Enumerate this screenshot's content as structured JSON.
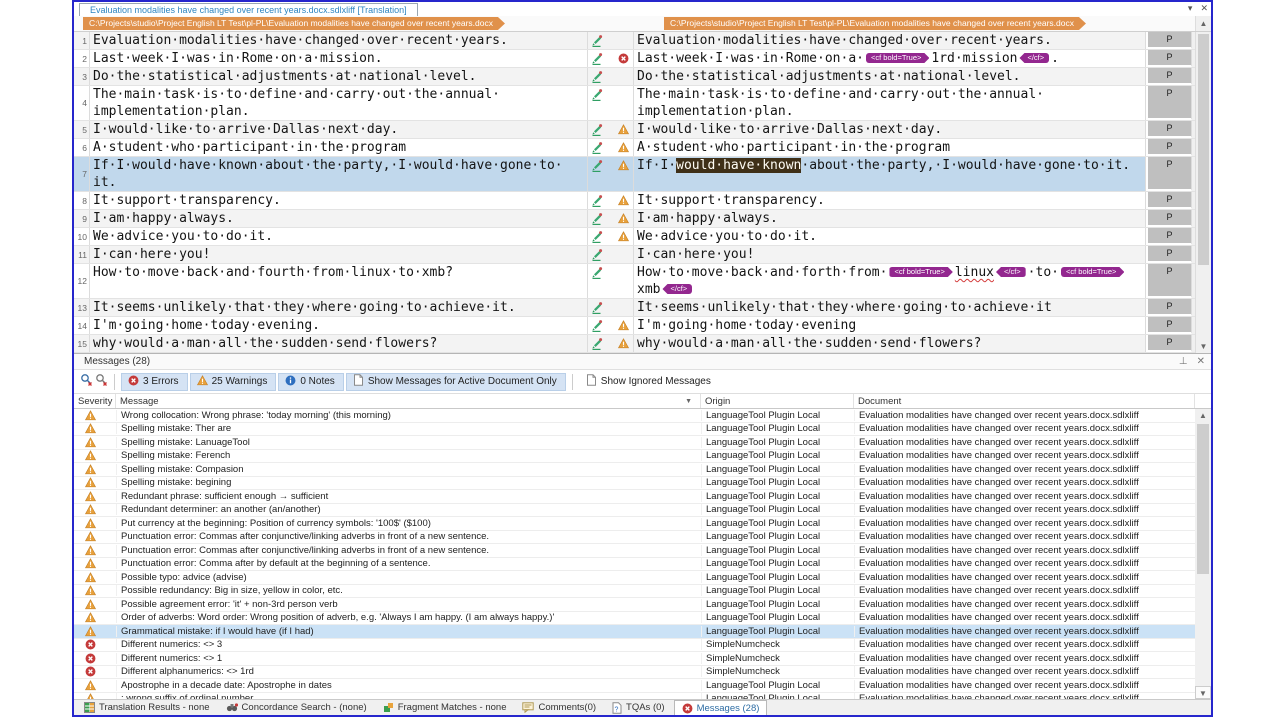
{
  "colors": {
    "window_border": "#2626cc",
    "breadcrumb_orange": "#e0914b",
    "tag_purple": "#93278f",
    "highlight_brown": "#3f3018",
    "selection_blue": "#c1d8ec",
    "warning_orange": "#e8a13c",
    "error_red": "#c43a3a"
  },
  "window": {
    "tab_title": "Evaluation modalities have changed over recent years.docx.sdlxliff [Translation]",
    "tab_dropdown_icon": "chevron-down-icon",
    "tab_close_icon": "close-icon"
  },
  "editor": {
    "source_path": "C:\\Projects\\studio\\Project English LT Test\\pl-PL\\Evaluation modalities have changed over recent years.docx",
    "target_path": "C:\\Projects\\studio\\Project English LT Test\\pl-PL\\Evaluation modalities have changed over recent years.docx",
    "structure_label": "P",
    "status_icon": "pencil-draft-icon",
    "segments": [
      {
        "num": "1",
        "lines": 1,
        "selected": false,
        "qa": null,
        "source": [
          {
            "t": "Evaluation modalities have changed over recent years."
          }
        ],
        "target": [
          {
            "t": "Evaluation modalities have changed over recent years."
          }
        ]
      },
      {
        "num": "2",
        "lines": 1,
        "selected": false,
        "qa": "error",
        "source": [
          {
            "t": "Last week I was in Rome on a mission."
          }
        ],
        "target": [
          {
            "t": "Last week I was in Rome on a "
          },
          {
            "t": "<cf bold=True>",
            "kind": "tag-open"
          },
          {
            "t": "1rd mission"
          },
          {
            "t": "</cf>",
            "kind": "tag-close"
          },
          {
            "t": "."
          }
        ]
      },
      {
        "num": "3",
        "lines": 1,
        "selected": false,
        "qa": null,
        "source": [
          {
            "t": "Do the statistical adjustments at national level."
          }
        ],
        "target": [
          {
            "t": "Do the statistical adjustments at national level."
          }
        ]
      },
      {
        "num": "4",
        "lines": 2,
        "selected": false,
        "qa": null,
        "source": [
          {
            "t": "The main task is to define and carry out the annual implementation plan."
          }
        ],
        "target": [
          {
            "t": "The main task is to define and carry out the annual implementation plan."
          }
        ]
      },
      {
        "num": "5",
        "lines": 1,
        "selected": false,
        "qa": "warning",
        "source": [
          {
            "t": "I would like to arrive Dallas next day."
          }
        ],
        "target": [
          {
            "t": "I would like to arrive Dallas next day."
          }
        ]
      },
      {
        "num": "6",
        "lines": 1,
        "selected": false,
        "qa": "warning",
        "source": [
          {
            "t": "A student who participant in the program"
          }
        ],
        "target": [
          {
            "t": "A student who participant in the program"
          }
        ]
      },
      {
        "num": "7",
        "lines": 2,
        "selected": true,
        "qa": "warning",
        "source": [
          {
            "t": "If I would have known about the party, I would have gone to it."
          }
        ],
        "target": [
          {
            "t": "If I "
          },
          {
            "t": "would have known",
            "kind": "highlight"
          },
          {
            "t": " about the party, I would have gone to it."
          }
        ]
      },
      {
        "num": "8",
        "lines": 1,
        "selected": false,
        "qa": "warning",
        "source": [
          {
            "t": "It support transparency."
          }
        ],
        "target": [
          {
            "t": "It support transparency."
          }
        ]
      },
      {
        "num": "9",
        "lines": 1,
        "selected": false,
        "qa": "warning",
        "source": [
          {
            "t": "I am happy always."
          }
        ],
        "target": [
          {
            "t": "I am happy always."
          }
        ]
      },
      {
        "num": "10",
        "lines": 1,
        "selected": false,
        "qa": "warning",
        "source": [
          {
            "t": "We advice you to do it."
          }
        ],
        "target": [
          {
            "t": "We advice you to do it."
          }
        ]
      },
      {
        "num": "11",
        "lines": 1,
        "selected": false,
        "qa": null,
        "source": [
          {
            "t": "I can here you!"
          }
        ],
        "target": [
          {
            "t": "I can here you!"
          }
        ]
      },
      {
        "num": "12",
        "lines": 2,
        "selected": false,
        "qa": null,
        "source": [
          {
            "t": "How to move back and fourth from linux to xmb?"
          }
        ],
        "target": [
          {
            "t": "How to move back and forth from "
          },
          {
            "t": "<cf bold=True>",
            "kind": "tag-open"
          },
          {
            "t": "linux",
            "kind": "misspelled"
          },
          {
            "t": "</cf>",
            "kind": "tag-close"
          },
          {
            "t": " to "
          },
          {
            "t": "<cf bold=True>",
            "kind": "tag-open"
          },
          {
            "t": "xmb"
          },
          {
            "t": "</cf>",
            "kind": "tag-close"
          }
        ]
      },
      {
        "num": "13",
        "lines": 1,
        "selected": false,
        "qa": null,
        "source": [
          {
            "t": "It seems unlikely that they where going to achieve it."
          }
        ],
        "target": [
          {
            "t": "It seems unlikely that they where going to achieve it"
          }
        ]
      },
      {
        "num": "14",
        "lines": 1,
        "selected": false,
        "qa": "warning",
        "source": [
          {
            "t": "I'm going home today evening."
          }
        ],
        "target": [
          {
            "t": "I'm going home today evening"
          }
        ]
      },
      {
        "num": "15",
        "lines": 1,
        "selected": false,
        "qa": "warning",
        "source": [
          {
            "t": "why would a man all the sudden send flowers?"
          }
        ],
        "target": [
          {
            "t": "why would a man all the sudden send flowers?"
          }
        ]
      }
    ]
  },
  "messages_panel": {
    "title": "Messages (28)",
    "pin_icon": "pin-icon",
    "close_icon": "close-icon",
    "toolbar": {
      "filter_icons": [
        "filter-search-icon",
        "clear-filter-icon"
      ],
      "errors_label": "3 Errors",
      "warnings_label": "25 Warnings",
      "notes_label": "0 Notes",
      "active_only_label": "Show Messages for Active Document Only",
      "ignored_label": "Show Ignored Messages"
    },
    "columns": [
      "Severity",
      "Message",
      "Origin",
      "Document"
    ],
    "rows": [
      {
        "severity": "warning",
        "selected": false,
        "message": "Wrong collocation: Wrong phrase: 'today morning' (this morning)",
        "origin": "LanguageTool Plugin Local",
        "document": "Evaluation modalities have changed over recent years.docx.sdlxliff"
      },
      {
        "severity": "warning",
        "selected": false,
        "message": "Spelling mistake: Ther are",
        "origin": "LanguageTool Plugin Local",
        "document": "Evaluation modalities have changed over recent years.docx.sdlxliff"
      },
      {
        "severity": "warning",
        "selected": false,
        "message": "Spelling mistake: LanuageTool",
        "origin": "LanguageTool Plugin Local",
        "document": "Evaluation modalities have changed over recent years.docx.sdlxliff"
      },
      {
        "severity": "warning",
        "selected": false,
        "message": "Spelling mistake: Ferench",
        "origin": "LanguageTool Plugin Local",
        "document": "Evaluation modalities have changed over recent years.docx.sdlxliff"
      },
      {
        "severity": "warning",
        "selected": false,
        "message": "Spelling mistake: Compasion",
        "origin": "LanguageTool Plugin Local",
        "document": "Evaluation modalities have changed over recent years.docx.sdlxliff"
      },
      {
        "severity": "warning",
        "selected": false,
        "message": "Spelling mistake: begining",
        "origin": "LanguageTool Plugin Local",
        "document": "Evaluation modalities have changed over recent years.docx.sdlxliff"
      },
      {
        "severity": "warning",
        "selected": false,
        "message": "Redundant phrase: sufficient enough → sufficient",
        "origin": "LanguageTool Plugin Local",
        "document": "Evaluation modalities have changed over recent years.docx.sdlxliff"
      },
      {
        "severity": "warning",
        "selected": false,
        "message": "Redundant determiner: an another (an/another)",
        "origin": "LanguageTool Plugin Local",
        "document": "Evaluation modalities have changed over recent years.docx.sdlxliff"
      },
      {
        "severity": "warning",
        "selected": false,
        "message": "Put currency at the beginning: Position of currency symbols: '100$' ($100)",
        "origin": "LanguageTool Plugin Local",
        "document": "Evaluation modalities have changed over recent years.docx.sdlxliff"
      },
      {
        "severity": "warning",
        "selected": false,
        "message": "Punctuation error: Commas after conjunctive/linking adverbs in front of a new sentence.",
        "origin": "LanguageTool Plugin Local",
        "document": "Evaluation modalities have changed over recent years.docx.sdlxliff"
      },
      {
        "severity": "warning",
        "selected": false,
        "message": "Punctuation error: Commas after conjunctive/linking adverbs in front of a new sentence.",
        "origin": "LanguageTool Plugin Local",
        "document": "Evaluation modalities have changed over recent years.docx.sdlxliff"
      },
      {
        "severity": "warning",
        "selected": false,
        "message": "Punctuation error: Comma after by default at the beginning of a sentence.",
        "origin": "LanguageTool Plugin Local",
        "document": "Evaluation modalities have changed over recent years.docx.sdlxliff"
      },
      {
        "severity": "warning",
        "selected": false,
        "message": "Possible typo: advice (advise)",
        "origin": "LanguageTool Plugin Local",
        "document": "Evaluation modalities have changed over recent years.docx.sdlxliff"
      },
      {
        "severity": "warning",
        "selected": false,
        "message": "Possible redundancy: Big in size, yellow in color, etc.",
        "origin": "LanguageTool Plugin Local",
        "document": "Evaluation modalities have changed over recent years.docx.sdlxliff"
      },
      {
        "severity": "warning",
        "selected": false,
        "message": "Possible agreement error: 'it' + non-3rd person verb",
        "origin": "LanguageTool Plugin Local",
        "document": "Evaluation modalities have changed over recent years.docx.sdlxliff"
      },
      {
        "severity": "warning",
        "selected": false,
        "message": "Order of adverbs: Word order: Wrong position of adverb, e.g. 'Always I am happy. (I am always happy.)'",
        "origin": "LanguageTool Plugin Local",
        "document": "Evaluation modalities have changed over recent years.docx.sdlxliff"
      },
      {
        "severity": "warning",
        "selected": true,
        "message": "Grammatical mistake: if I would have (if I had)",
        "origin": "LanguageTool Plugin Local",
        "document": "Evaluation modalities have changed over recent years.docx.sdlxliff"
      },
      {
        "severity": "error",
        "selected": false,
        "message": "Different numerics:  <> 3",
        "origin": "SimpleNumcheck",
        "document": "Evaluation modalities have changed over recent years.docx.sdlxliff"
      },
      {
        "severity": "error",
        "selected": false,
        "message": "Different numerics:  <> 1",
        "origin": "SimpleNumcheck",
        "document": "Evaluation modalities have changed over recent years.docx.sdlxliff"
      },
      {
        "severity": "error",
        "selected": false,
        "message": "Different alphanumerics:  <> 1rd",
        "origin": "SimpleNumcheck",
        "document": "Evaluation modalities have changed over recent years.docx.sdlxliff"
      },
      {
        "severity": "warning",
        "selected": false,
        "message": "Apostrophe in a decade date: Apostrophe in dates",
        "origin": "LanguageTool Plugin Local",
        "document": "Evaluation modalities have changed over recent years.docx.sdlxliff"
      },
      {
        "severity": "warning",
        "selected": false,
        "message": ": wrong suffix of ordinal number",
        "origin": "LanguageTool Plugin Local",
        "document": "Evaluation modalities have changed over recent years.docx.sdlxliff"
      }
    ]
  },
  "bottom_tabs": [
    {
      "label": "Translation Results - none",
      "icon": "translation-results-icon",
      "active": false
    },
    {
      "label": "Concordance Search - (none)",
      "icon": "concordance-search-icon",
      "active": false
    },
    {
      "label": "Fragment Matches - none",
      "icon": "fragment-matches-icon",
      "active": false
    },
    {
      "label": "Comments(0)",
      "icon": "comments-icon",
      "active": false
    },
    {
      "label": "TQAs (0)",
      "icon": "tqa-icon",
      "active": false
    },
    {
      "label": "Messages (28)",
      "icon": "messages-error-icon",
      "active": true
    }
  ]
}
